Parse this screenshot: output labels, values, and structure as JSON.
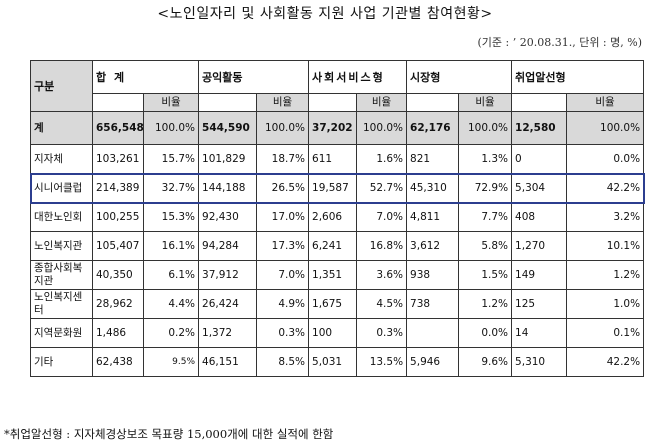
{
  "title": "<노인일자리 및 사회활동 지원 사업 기관별 참여현황>",
  "unit_note": "(기준 : ’ 20.08.31., 단위 : 명, %)",
  "header": {
    "category": "구분",
    "total": "합 계",
    "public": "공익활동",
    "social_service": "사회서비스형",
    "market": "시장형",
    "employment": "취업알선형",
    "ratio": "비율"
  },
  "rows": [
    {
      "name": "계",
      "total": "656,548",
      "total_pct": "100.0%",
      "public": "544,590",
      "public_pct": "100.0%",
      "social": "37,202",
      "social_pct": "100.0%",
      "market": "62,176",
      "market_pct": "100.0%",
      "emp": "12,580",
      "emp_pct": "100.0%"
    },
    {
      "name": "지자체",
      "total": "103,261",
      "total_pct": "15.7%",
      "public": "101,829",
      "public_pct": "18.7%",
      "social": "611",
      "social_pct": "1.6%",
      "market": "821",
      "market_pct": "1.3%",
      "emp": "0",
      "emp_pct": "0.0%"
    },
    {
      "name": "시니어클럽",
      "total": "214,389",
      "total_pct": "32.7%",
      "public": "144,188",
      "public_pct": "26.5%",
      "social": "19,587",
      "social_pct": "52.7%",
      "market": "45,310",
      "market_pct": "72.9%",
      "emp": "5,304",
      "emp_pct": "42.2%"
    },
    {
      "name": "대한노인회",
      "total": "100,255",
      "total_pct": "15.3%",
      "public": "92,430",
      "public_pct": "17.0%",
      "social": "2,606",
      "social_pct": "7.0%",
      "market": "4,811",
      "market_pct": "7.7%",
      "emp": "408",
      "emp_pct": "3.2%"
    },
    {
      "name": "노인복지관",
      "total": "105,407",
      "total_pct": "16.1%",
      "public": "94,284",
      "public_pct": "17.3%",
      "social": "6,241",
      "social_pct": "16.8%",
      "market": "3,612",
      "market_pct": "5.8%",
      "emp": "1,270",
      "emp_pct": "10.1%"
    },
    {
      "name": "종합사회복지관",
      "total": "40,350",
      "total_pct": "6.1%",
      "public": "37,912",
      "public_pct": "7.0%",
      "social": "1,351",
      "social_pct": "3.6%",
      "market": "938",
      "market_pct": "1.5%",
      "emp": "149",
      "emp_pct": "1.2%"
    },
    {
      "name": "노인복지센터",
      "total": "28,962",
      "total_pct": "4.4%",
      "public": "26,424",
      "public_pct": "4.9%",
      "social": "1,675",
      "social_pct": "4.5%",
      "market": "738",
      "market_pct": "1.2%",
      "emp": "125",
      "emp_pct": "1.0%"
    },
    {
      "name": "지역문화원",
      "total": "1,486",
      "total_pct": "0.2%",
      "public": "1,372",
      "public_pct": "0.3%",
      "social": "100",
      "social_pct": "0.3%",
      "market": "",
      "market_pct": "0.0%",
      "emp": "14",
      "emp_pct": "0.1%"
    },
    {
      "name": "기타",
      "total": "62,438",
      "total_pct": "9.5%",
      "public": "46,151",
      "public_pct": "8.5%",
      "social": "5,031",
      "social_pct": "13.5%",
      "market": "5,946",
      "market_pct": "9.6%",
      "emp": "5,310",
      "emp_pct": "42.2%"
    }
  ],
  "highlighted_row": "시니어클럽",
  "footnote": "*취업알선형 : 지자체경상보조 목표량 15,000개에 대한 실적에 한함",
  "colors": {
    "header_bg": "#d9d9d9",
    "highlight_border": "#2c3e8f"
  }
}
